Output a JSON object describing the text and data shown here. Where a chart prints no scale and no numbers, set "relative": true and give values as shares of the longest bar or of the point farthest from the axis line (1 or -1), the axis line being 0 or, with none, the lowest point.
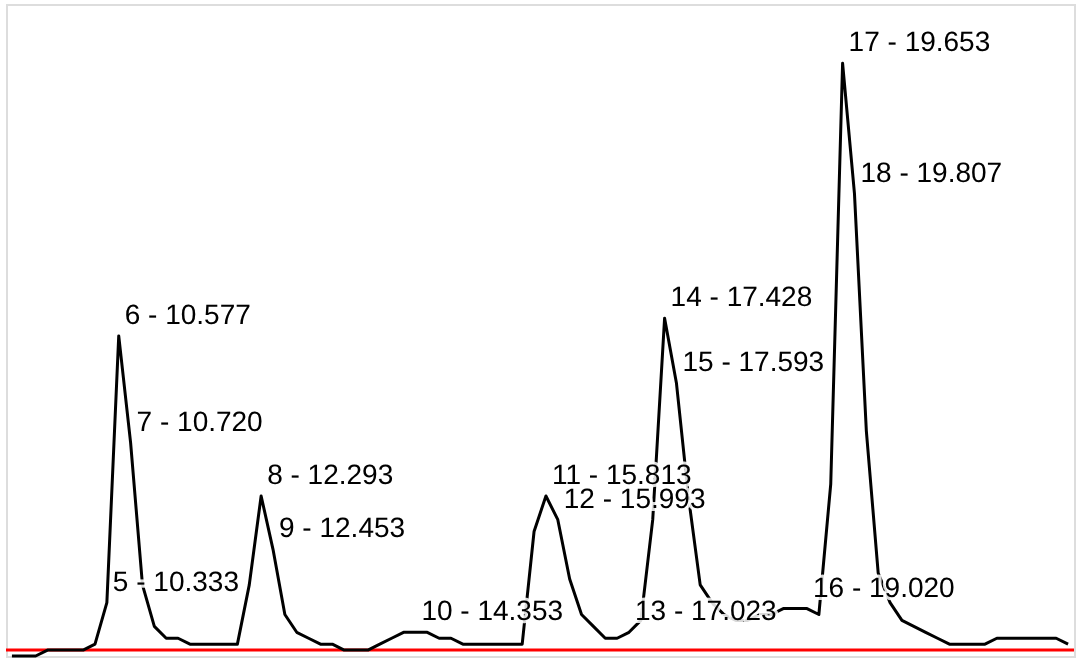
{
  "chart_data": {
    "type": "line",
    "relative": true,
    "tick_labels": false,
    "grid": false,
    "marker": "none",
    "line_style": "solid",
    "categories": [
      null,
      null,
      null,
      null,
      null,
      null,
      null,
      null,
      null,
      null,
      null,
      null,
      null,
      null,
      null,
      null,
      null,
      null,
      null,
      null,
      null,
      null,
      null,
      null,
      null,
      null,
      null,
      null,
      null,
      null,
      null,
      null,
      null,
      null,
      null,
      null,
      null,
      null,
      null,
      null,
      null,
      null,
      null,
      null,
      null,
      null,
      null,
      null,
      null,
      null,
      null,
      null,
      null,
      null,
      null,
      null,
      null,
      null,
      null,
      null,
      null,
      null,
      null,
      null,
      null,
      null,
      null,
      null,
      null,
      null,
      null,
      null,
      null,
      null,
      null,
      null,
      null,
      null,
      null,
      null,
      null,
      null,
      null,
      null,
      null,
      null,
      null,
      null,
      null,
      null
    ],
    "series": [
      {
        "color": "#000000",
        "values": [
          0,
          0,
          0,
          0.01,
          0.01,
          0.01,
          0.01,
          0.02,
          0.09,
          0.54,
          0.36,
          0.12,
          0.05,
          0.03,
          0.03,
          0.02,
          0.02,
          0.02,
          0.02,
          0.02,
          0.12,
          0.27,
          0.18,
          0.07,
          0.04,
          0.03,
          0.02,
          0.02,
          0.01,
          0.01,
          0.01,
          0.02,
          0.03,
          0.04,
          0.04,
          0.04,
          0.03,
          0.03,
          0.02,
          0.02,
          0.02,
          0.02,
          0.02,
          0.02,
          0.21,
          0.27,
          0.23,
          0.13,
          0.07,
          0.05,
          0.03,
          0.03,
          0.04,
          0.06,
          0.23,
          0.57,
          0.46,
          0.27,
          0.12,
          0.09,
          0.07,
          0.06,
          0.06,
          0.07,
          0.07,
          0.08,
          0.08,
          0.08,
          0.07,
          0.29,
          1,
          0.78,
          0.38,
          0.14,
          0.09,
          0.06,
          0.05,
          0.04,
          0.03,
          0.02,
          0.02,
          0.02,
          0.02,
          0.03,
          0.03,
          0.03,
          0.03,
          0.03,
          0.03,
          0.02
        ]
      }
    ],
    "ref_lines": [
      {
        "axis": "y",
        "value": 0.01,
        "color": "#ff0000"
      }
    ],
    "annotations": [
      "5 - 10.333",
      "6 - 10.577",
      "7 - 10.720",
      "8 - 12.293",
      "9 - 12.453",
      "10 - 14.353",
      "11 - 15.813",
      "12 - 15.993",
      "13 - 17.023",
      "14 - 17.428",
      "15 - 17.593",
      "16 - 19.020",
      "17 - 19.653",
      "18 - 19.807"
    ]
  }
}
